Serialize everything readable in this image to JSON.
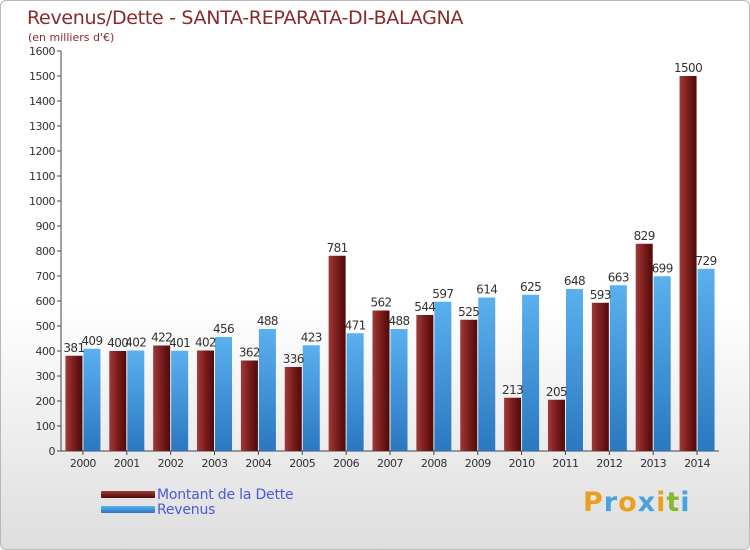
{
  "chart_data": {
    "type": "bar",
    "title": "Revenus/Dette - SANTA-REPARATA-DI-BALAGNA",
    "subtitle": "(en milliers d'€)",
    "categories": [
      "2000",
      "2001",
      "2002",
      "2003",
      "2004",
      "2005",
      "2006",
      "2007",
      "2008",
      "2009",
      "2010",
      "2011",
      "2012",
      "2013",
      "2014"
    ],
    "series": [
      {
        "name": "Montant de la Dette",
        "color": "#7a1c1c",
        "values": [
          381,
          400,
          422,
          402,
          362,
          336,
          781,
          562,
          544,
          525,
          213,
          205,
          593,
          829,
          1500
        ]
      },
      {
        "name": "Revenus",
        "color": "#4a9fe0",
        "values": [
          409,
          402,
          401,
          456,
          488,
          423,
          471,
          488,
          597,
          614,
          625,
          648,
          663,
          699,
          729
        ]
      }
    ],
    "ylim": [
      0,
      1600
    ],
    "yticks": [
      0,
      100,
      200,
      300,
      400,
      500,
      600,
      700,
      800,
      900,
      1000,
      1100,
      1200,
      1300,
      1400,
      1500,
      1600
    ],
    "grid": false,
    "legend_position": "bottom-left"
  },
  "logo": {
    "letters": [
      "P",
      "r",
      "o",
      "x",
      "i",
      "t",
      "i"
    ],
    "colors": [
      "#e8a020",
      "#4aa0e0",
      "#e8a020",
      "#4aa0e0",
      "#e8a020",
      "#88b830",
      "#4aa0e0"
    ]
  }
}
